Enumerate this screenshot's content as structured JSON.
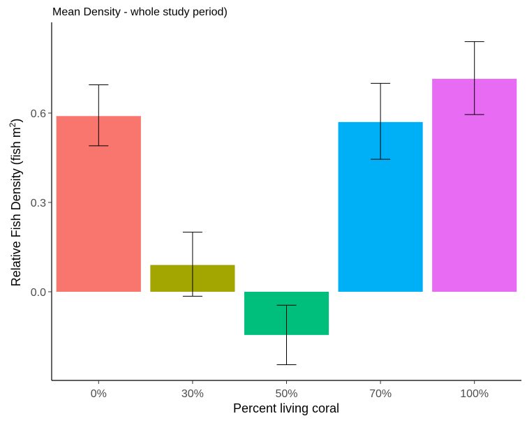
{
  "chart_data": {
    "type": "bar",
    "title": "Mean Density - whole study period)",
    "xlabel": "Percent living coral",
    "ylabel": "Relative Fish Density (fish m",
    "ylabel_superscript": "2",
    "ylabel_suffix": ")",
    "categories": [
      "0%",
      "30%",
      "50%",
      "70%",
      "100%"
    ],
    "values": [
      0.59,
      0.09,
      -0.145,
      0.57,
      0.715
    ],
    "error_low": [
      0.49,
      -0.015,
      -0.245,
      0.445,
      0.595
    ],
    "error_high": [
      0.695,
      0.2,
      -0.045,
      0.7,
      0.84
    ],
    "colors": [
      "#F8766D",
      "#A3A500",
      "#00BF7D",
      "#00B0F6",
      "#E76BF3"
    ],
    "yticks": [
      0.0,
      0.3,
      0.6
    ],
    "ytick_labels": [
      "0.0",
      "0.3",
      "0.6"
    ],
    "ylim": [
      -0.3,
      0.9
    ],
    "grid": false,
    "legend": "none"
  }
}
